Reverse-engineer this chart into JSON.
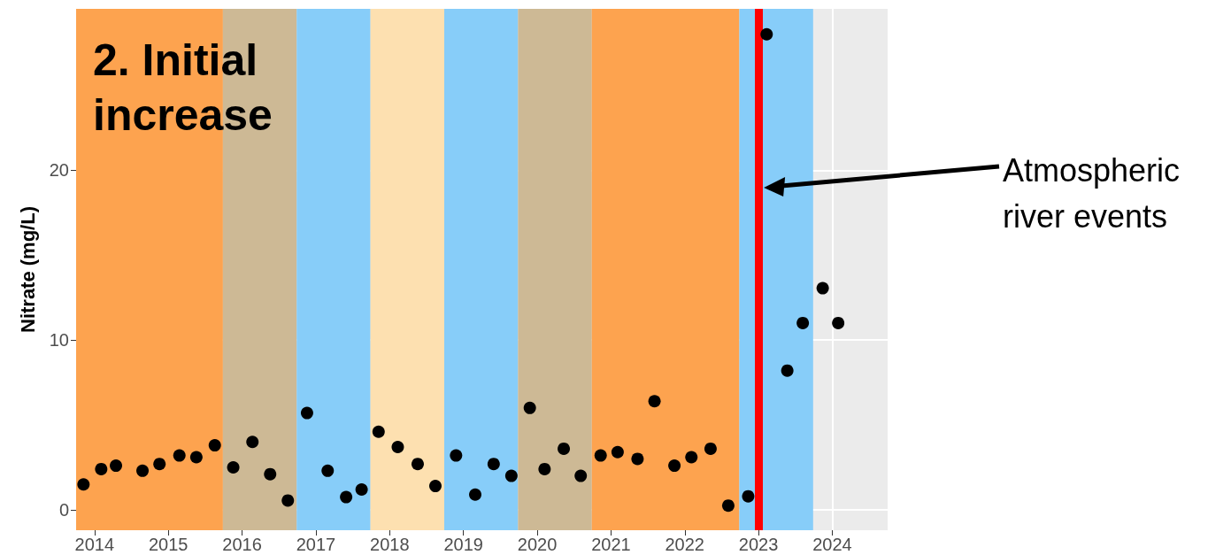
{
  "chart_data": {
    "type": "scatter",
    "title": "2. Initial increase",
    "ylabel": "Nitrate (mg/L)",
    "x": [
      2013.85,
      2014.09,
      2014.29,
      2014.65,
      2014.88,
      2015.15,
      2015.38,
      2015.63,
      2015.88,
      2016.14,
      2016.38,
      2016.62,
      2016.88,
      2017.16,
      2017.41,
      2017.62,
      2017.85,
      2018.11,
      2018.38,
      2018.62,
      2018.9,
      2019.16,
      2019.41,
      2019.65,
      2019.9,
      2020.1,
      2020.36,
      2020.59,
      2020.86,
      2021.09,
      2021.36,
      2021.59,
      2021.86,
      2022.09,
      2022.35,
      2022.59,
      2022.86,
      2023.11,
      2023.39,
      2023.6,
      2023.87,
      2024.08
    ],
    "values": [
      1.5,
      2.4,
      2.6,
      2.3,
      2.7,
      3.2,
      3.1,
      3.8,
      2.5,
      4.0,
      2.1,
      0.55,
      5.7,
      2.3,
      0.75,
      1.2,
      4.6,
      3.7,
      2.7,
      1.4,
      3.2,
      0.9,
      2.7,
      2.0,
      6.0,
      2.4,
      3.6,
      2.0,
      3.2,
      3.4,
      3.0,
      6.4,
      2.6,
      3.1,
      3.6,
      0.25,
      0.8,
      28.0,
      8.2,
      11.0,
      13.05,
      11.0
    ],
    "color": "#000000",
    "marker": "circle",
    "xlim": [
      2013.75,
      2024.75
    ],
    "xticks": [
      2014,
      2015,
      2016,
      2017,
      2018,
      2019,
      2020,
      2021,
      2022,
      2023,
      2024
    ],
    "ylim": [
      -1.2,
      29.5
    ],
    "yticks": [
      0,
      10,
      20
    ],
    "grid": true,
    "bands": [
      {
        "axis": "x",
        "from": 2013.75,
        "to": 2015.74,
        "color": "#fda34f"
      },
      {
        "axis": "x",
        "from": 2015.74,
        "to": 2016.74,
        "color": "#cdb995"
      },
      {
        "axis": "x",
        "from": 2016.74,
        "to": 2017.74,
        "color": "#87cdf9"
      },
      {
        "axis": "x",
        "from": 2017.74,
        "to": 2018.74,
        "color": "#fde0b0"
      },
      {
        "axis": "x",
        "from": 2018.74,
        "to": 2019.74,
        "color": "#87cdf9"
      },
      {
        "axis": "x",
        "from": 2019.74,
        "to": 2020.74,
        "color": "#cdb995"
      },
      {
        "axis": "x",
        "from": 2020.74,
        "to": 2022.74,
        "color": "#fda34f"
      },
      {
        "axis": "x",
        "from": 2022.74,
        "to": 2023.74,
        "color": "#87cdf9"
      }
    ],
    "annotations": [
      "Atmospheric river events"
    ],
    "ref_lines": [
      {
        "axis": "x",
        "value": 2023.0,
        "color": "#ff0000",
        "line_style": "solid"
      }
    ]
  }
}
